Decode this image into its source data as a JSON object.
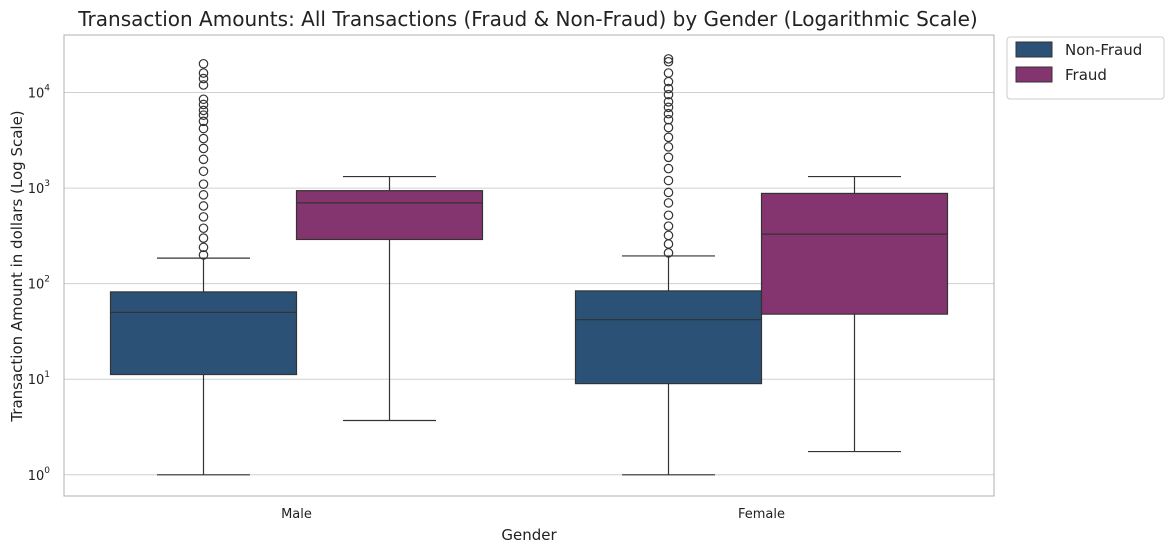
{
  "chart_data": {
    "type": "box",
    "title": "Transaction Amounts: All Transactions (Fraud & Non-Fraud) by Gender (Logarithmic Scale)",
    "xlabel": "Gender",
    "ylabel": "Transaction Amount in dollars (Log Scale)",
    "yscale": "log",
    "ylim": [
      0.6,
      40000
    ],
    "categories": [
      "Male",
      "Female"
    ],
    "y_ticks": [
      {
        "base": "10",
        "exp": "0",
        "value": 1
      },
      {
        "base": "10",
        "exp": "1",
        "value": 10
      },
      {
        "base": "10",
        "exp": "2",
        "value": 100
      },
      {
        "base": "10",
        "exp": "3",
        "value": 1000
      },
      {
        "base": "10",
        "exp": "4",
        "value": 10000
      }
    ],
    "grid": "horizontal",
    "legend_position": "outside top-right",
    "series": [
      {
        "name": "Non-Fraud",
        "color": "#2b5176",
        "boxes": [
          {
            "category": "Male",
            "whisker_low": 1.0,
            "q1": 11.2,
            "median": 50,
            "q3": 82,
            "whisker_high": 185,
            "outliers": [
              200,
              240,
              300,
              380,
              500,
              650,
              850,
              1100,
              1500,
              2000,
              2600,
              3300,
              4200,
              5000,
              5800,
              6500,
              7500,
              8500,
              12000,
              14000,
              16000,
              20000
            ]
          },
          {
            "category": "Female",
            "whisker_low": 1.0,
            "q1": 9.0,
            "median": 42,
            "q3": 84,
            "whisker_high": 195,
            "outliers": [
              210,
              260,
              320,
              400,
              520,
              700,
              900,
              1200,
              1600,
              2100,
              2700,
              3400,
              4300,
              5200,
              6000,
              7000,
              8000,
              9500,
              11000,
              13000,
              16000,
              21000,
              22500
            ]
          }
        ]
      },
      {
        "name": "Fraud",
        "color": "#84356f",
        "boxes": [
          {
            "category": "Male",
            "whisker_low": 3.7,
            "q1": 290,
            "median": 700,
            "q3": 940,
            "whisker_high": 1320,
            "outliers": []
          },
          {
            "category": "Female",
            "whisker_low": 1.75,
            "q1": 48,
            "median": 330,
            "q3": 880,
            "whisker_high": 1320,
            "outliers": []
          }
        ]
      }
    ]
  }
}
